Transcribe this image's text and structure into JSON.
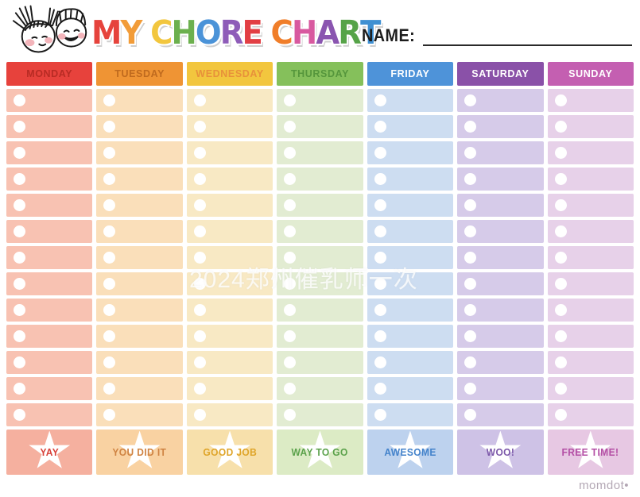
{
  "header": {
    "title": "MY CHORE CHART",
    "title_letters": [
      {
        "ch": "M",
        "color": "#e6433c"
      },
      {
        "ch": "Y",
        "color": "#f29c38"
      },
      {
        "ch": " ",
        "color": ""
      },
      {
        "ch": "C",
        "color": "#f2c63e"
      },
      {
        "ch": "H",
        "color": "#6cb04e"
      },
      {
        "ch": "O",
        "color": "#4b93d8"
      },
      {
        "ch": "R",
        "color": "#8e5cb8"
      },
      {
        "ch": "E",
        "color": "#e23f44"
      },
      {
        "ch": " ",
        "color": ""
      },
      {
        "ch": "C",
        "color": "#f07e2a"
      },
      {
        "ch": "H",
        "color": "#d8599f"
      },
      {
        "ch": "A",
        "color": "#8a55b0"
      },
      {
        "ch": "R",
        "color": "#56a348"
      },
      {
        "ch": "T",
        "color": "#3f90d2"
      }
    ],
    "name_label": "NAME:",
    "kids_illustration_icon": "two-kids-faces-doodle"
  },
  "rows_per_day": 13,
  "row_bullet_icon": "circle-bullet",
  "footer_star_icon": "star-icon",
  "days": [
    {
      "label": "MONDAY",
      "header_bg": "#e7423c",
      "header_text": "#b82b24",
      "row_bg": "#f8c2b2",
      "footer_bg": "#f5b09f",
      "footer_label": "YAY",
      "footer_text": "#d8423a"
    },
    {
      "label": "TUESDAY",
      "header_bg": "#ef9434",
      "header_text": "#bf6a1e",
      "row_bg": "#fadfba",
      "footer_bg": "#f9d2a2",
      "footer_label": "YOU DID IT",
      "footer_text": "#cf8342"
    },
    {
      "label": "WEDNESDAY",
      "header_bg": "#f2c63e",
      "header_text": "#e8913a",
      "row_bg": "#f8e9c4",
      "footer_bg": "#f7e0ab",
      "footer_label": "GOOD JOB",
      "footer_text": "#dfa52a"
    },
    {
      "label": "THURSDAY",
      "header_bg": "#85c05b",
      "header_text": "#55963c",
      "row_bg": "#e2ecd2",
      "footer_bg": "#dcebc5",
      "footer_label": "WAY TO GO",
      "footer_text": "#5ca24c"
    },
    {
      "label": "FRIDAY",
      "header_bg": "#4e93d9",
      "header_text": "#ffffff",
      "row_bg": "#cdddf1",
      "footer_bg": "#bdd2ee",
      "footer_label": "AWESOME",
      "footer_text": "#4483cb"
    },
    {
      "label": "SATURDAY",
      "header_bg": "#8a51a8",
      "header_text": "#ffffff",
      "row_bg": "#d6cbe9",
      "footer_bg": "#cec2e6",
      "footer_label": "WOO!",
      "footer_text": "#7c58a9"
    },
    {
      "label": "SUNDAY",
      "header_bg": "#c45fb1",
      "header_text": "#ffffff",
      "row_bg": "#e7d1e9",
      "footer_bg": "#e7c8e3",
      "footer_label": "FREE TIME!",
      "footer_text": "#b44fa5"
    }
  ],
  "watermark": "2024郑州催乳师一次",
  "brand": "momdot•"
}
